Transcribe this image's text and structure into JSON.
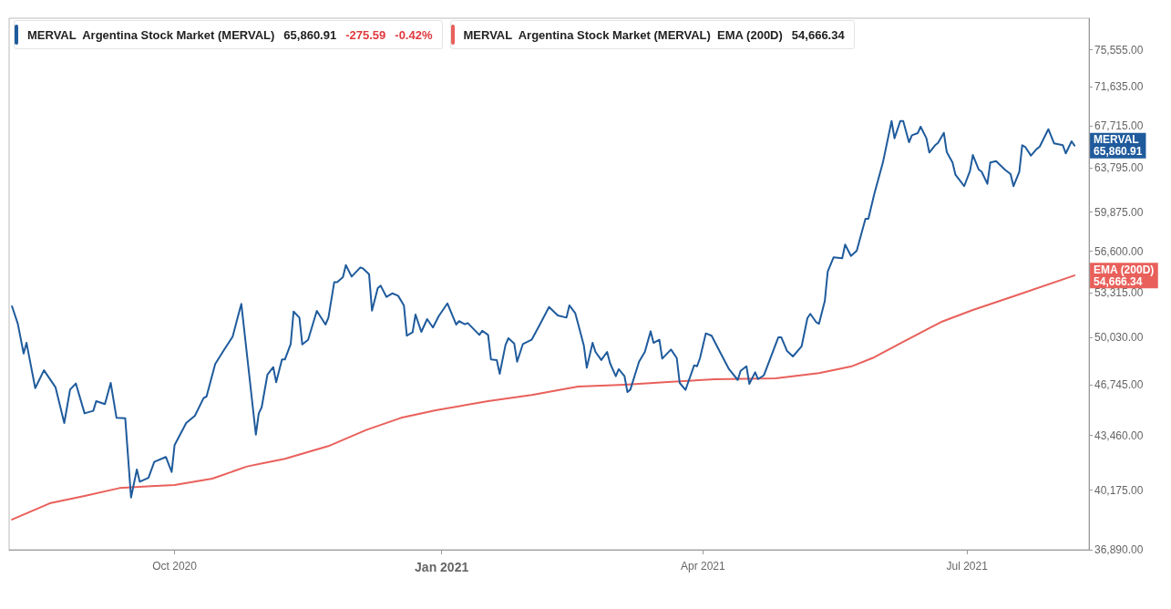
{
  "chart_data": {
    "type": "line",
    "legend": "top left",
    "log": "y",
    "grid": false,
    "xlim": [
      "2020-08-05",
      "2021-08-12"
    ],
    "xticks": [
      {
        "value": "2020-10-01",
        "label": "Oct 2020"
      },
      {
        "value": "2021-01-01",
        "label": "Jan 2021"
      },
      {
        "value": "2021-04-01",
        "label": "Apr 2021"
      },
      {
        "value": "2021-07-01",
        "label": "Jul 2021"
      }
    ],
    "ylim": [
      36890,
      79050
    ],
    "yticks": [
      {
        "value": 36890,
        "label": "36,890.00"
      },
      {
        "value": 40175,
        "label": "40,175.00"
      },
      {
        "value": 43460,
        "label": "43,460.00"
      },
      {
        "value": 46745,
        "label": "46,745.00"
      },
      {
        "value": 50030,
        "label": "50,030.00"
      },
      {
        "value": 53315,
        "label": "53,315.00"
      },
      {
        "value": 56600,
        "label": "56,600.00"
      },
      {
        "value": 59875,
        "label": "59,875.00"
      },
      {
        "value": 63795,
        "label": "63,795.00"
      },
      {
        "value": 67715,
        "label": "67,715.00"
      },
      {
        "value": 71635,
        "label": "71,635.00"
      },
      {
        "value": 75555,
        "label": "75,555.00"
      }
    ],
    "annotations": [
      "65,860.91",
      "-275.59",
      "-0.42%",
      "54,666.34",
      {
        "text": "MERVAL 65,860.91",
        "x": "2021-08-07",
        "y": 65860.91
      },
      {
        "text": "EMA (200D) 54,666.34",
        "x": "2021-08-07",
        "y": 54666.34
      }
    ],
    "series": [
      {
        "name": "MERVAL  Argentina Stock Market (MERVAL)",
        "color": "#1f5b9c",
        "x": [
          "2020-08-06",
          "2020-08-08",
          "2020-08-10",
          "2020-08-11",
          "2020-08-14",
          "2020-08-17",
          "2020-08-21",
          "2020-08-24",
          "2020-08-26",
          "2020-08-28",
          "2020-08-31",
          "2020-09-03",
          "2020-09-04",
          "2020-09-07",
          "2020-09-09",
          "2020-09-11",
          "2020-09-14",
          "2020-09-16",
          "2020-09-18",
          "2020-09-19",
          "2020-09-22",
          "2020-09-24",
          "2020-09-28",
          "2020-09-30",
          "2020-10-01",
          "2020-10-05",
          "2020-10-08",
          "2020-10-11",
          "2020-10-12",
          "2020-10-15",
          "2020-10-18",
          "2020-10-21",
          "2020-10-23",
          "2020-10-24",
          "2020-10-29",
          "2020-10-30",
          "2020-10-31",
          "2020-11-02",
          "2020-11-04",
          "2020-11-05",
          "2020-11-07",
          "2020-11-08",
          "2020-11-10",
          "2020-11-11",
          "2020-11-13",
          "2020-11-14",
          "2020-11-16",
          "2020-11-19",
          "2020-11-22",
          "2020-11-23",
          "2020-11-25",
          "2020-11-26",
          "2020-11-28",
          "2020-11-29",
          "2020-12-01",
          "2020-12-04",
          "2020-12-05",
          "2020-12-07",
          "2020-12-08",
          "2020-12-10",
          "2020-12-11",
          "2020-12-13",
          "2020-12-15",
          "2020-12-17",
          "2020-12-19",
          "2020-12-20",
          "2020-12-22",
          "2020-12-23",
          "2020-12-25",
          "2020-12-27",
          "2020-12-29",
          "2020-12-31",
          "2021-01-03",
          "2021-01-06",
          "2021-01-07",
          "2021-01-09",
          "2021-01-10",
          "2021-01-14",
          "2021-01-15",
          "2021-01-17",
          "2021-01-18",
          "2021-01-20",
          "2021-01-21",
          "2021-01-23",
          "2021-01-24",
          "2021-01-26",
          "2021-01-27",
          "2021-01-29",
          "2021-02-01",
          "2021-02-04",
          "2021-02-07",
          "2021-02-10",
          "2021-02-13",
          "2021-02-14",
          "2021-02-16",
          "2021-02-17",
          "2021-02-19",
          "2021-02-20",
          "2021-02-22",
          "2021-02-23",
          "2021-02-25",
          "2021-02-27",
          "2021-02-28",
          "2021-03-02",
          "2021-03-03",
          "2021-03-05",
          "2021-03-06",
          "2021-03-07",
          "2021-03-10",
          "2021-03-12",
          "2021-03-14",
          "2021-03-15",
          "2021-03-17",
          "2021-03-18",
          "2021-03-21",
          "2021-03-23",
          "2021-03-24",
          "2021-03-26",
          "2021-03-29",
          "2021-03-30",
          "2021-03-31",
          "2021-04-02",
          "2021-04-04",
          "2021-04-07",
          "2021-04-10",
          "2021-04-13",
          "2021-04-14",
          "2021-04-16",
          "2021-04-17",
          "2021-04-19",
          "2021-04-20",
          "2021-04-22",
          "2021-04-23",
          "2021-04-27",
          "2021-04-28",
          "2021-04-30",
          "2021-05-02",
          "2021-05-05",
          "2021-05-07",
          "2021-05-08",
          "2021-05-10",
          "2021-05-11",
          "2021-05-13",
          "2021-05-14",
          "2021-05-16",
          "2021-05-19",
          "2021-05-20",
          "2021-05-22",
          "2021-05-24",
          "2021-05-25",
          "2021-05-27",
          "2021-05-28",
          "2021-05-30",
          "2021-06-02",
          "2021-06-05",
          "2021-06-06",
          "2021-06-08",
          "2021-06-09",
          "2021-06-11",
          "2021-06-12",
          "2021-06-14",
          "2021-06-15",
          "2021-06-17",
          "2021-06-18",
          "2021-06-20",
          "2021-06-21",
          "2021-06-23",
          "2021-06-24",
          "2021-06-26",
          "2021-06-27",
          "2021-06-29",
          "2021-06-30",
          "2021-07-02",
          "2021-07-03",
          "2021-07-05",
          "2021-07-06",
          "2021-07-08",
          "2021-07-09",
          "2021-07-11",
          "2021-07-14",
          "2021-07-16",
          "2021-07-17",
          "2021-07-19",
          "2021-07-20",
          "2021-07-21",
          "2021-07-23",
          "2021-07-25",
          "2021-07-26",
          "2021-07-29",
          "2021-07-31",
          "2021-08-03",
          "2021-08-04",
          "2021-08-06",
          "2021-08-07"
        ],
        "values": [
          52300,
          51010,
          48880,
          49630,
          46510,
          47720,
          46560,
          44240,
          46410,
          46820,
          44860,
          45020,
          45650,
          45460,
          46860,
          44570,
          44550,
          39760,
          41390,
          40670,
          40900,
          41840,
          42140,
          41240,
          42860,
          44240,
          44710,
          45850,
          45950,
          48150,
          49120,
          50070,
          51690,
          52480,
          43510,
          44860,
          45250,
          47430,
          47930,
          46900,
          48460,
          48460,
          49550,
          51910,
          51460,
          49520,
          49850,
          51960,
          50950,
          51460,
          54150,
          54150,
          54530,
          55490,
          54580,
          55300,
          55200,
          54770,
          51980,
          53690,
          53870,
          53010,
          53280,
          53100,
          52370,
          50140,
          50400,
          51690,
          50420,
          51350,
          50730,
          51570,
          52520,
          50950,
          51200,
          50970,
          51060,
          50200,
          50500,
          50200,
          48460,
          48420,
          47480,
          49480,
          49960,
          49590,
          48310,
          49550,
          49850,
          51010,
          52250,
          51620,
          51460,
          52370,
          51800,
          51010,
          49420,
          47890,
          49630,
          48990,
          48420,
          48990,
          48210,
          47310,
          47790,
          47310,
          46250,
          46410,
          48310,
          48990,
          50460,
          49630,
          49850,
          48520,
          49160,
          48560,
          46860,
          46390,
          48060,
          47990,
          48560,
          50310,
          50140,
          48940,
          47790,
          47060,
          47680,
          47990,
          46800,
          47580,
          47120,
          47370,
          47890,
          50030,
          50030,
          49050,
          48670,
          49380,
          51420,
          51740,
          51130,
          51010,
          52710,
          54980,
          56100,
          56030,
          57140,
          56220,
          56640,
          57520,
          59290,
          59290,
          61400,
          64270,
          68220,
          66550,
          68220,
          68220,
          66170,
          66840,
          67040,
          67660,
          66550,
          65200,
          65890,
          66110,
          67070,
          65250,
          64270,
          63160,
          62480,
          62130,
          63490,
          64970,
          63630,
          63440,
          62340,
          64270,
          64410,
          63630,
          63210,
          62130,
          63440,
          65890,
          65740,
          64920,
          65540,
          65740,
          67420,
          66060,
          65890,
          65120,
          66260,
          65860.91
        ]
      },
      {
        "name": "MERVAL  Argentina Stock Market (MERVAL)  EMA (200D)",
        "color": "#e9605b",
        "x": [
          "2020-08-06",
          "2020-08-19",
          "2020-08-31",
          "2020-09-12",
          "2020-09-23",
          "2020-10-01",
          "2020-10-14",
          "2020-10-26",
          "2020-11-08",
          "2020-11-23",
          "2020-12-06",
          "2020-12-18",
          "2020-12-30",
          "2021-01-17",
          "2021-02-01",
          "2021-02-17",
          "2021-03-05",
          "2021-03-20",
          "2021-04-05",
          "2021-04-26",
          "2021-05-11",
          "2021-05-22",
          "2021-05-30",
          "2021-06-08",
          "2021-06-22",
          "2021-07-03",
          "2021-07-17",
          "2021-08-07"
        ],
        "values": [
          38520,
          39430,
          39850,
          40300,
          40410,
          40480,
          40850,
          41570,
          42030,
          42800,
          43800,
          44570,
          45060,
          45650,
          46050,
          46610,
          46740,
          46920,
          47110,
          47170,
          47520,
          47970,
          48610,
          49590,
          51130,
          52030,
          53060,
          54666.34
        ]
      }
    ]
  }
}
